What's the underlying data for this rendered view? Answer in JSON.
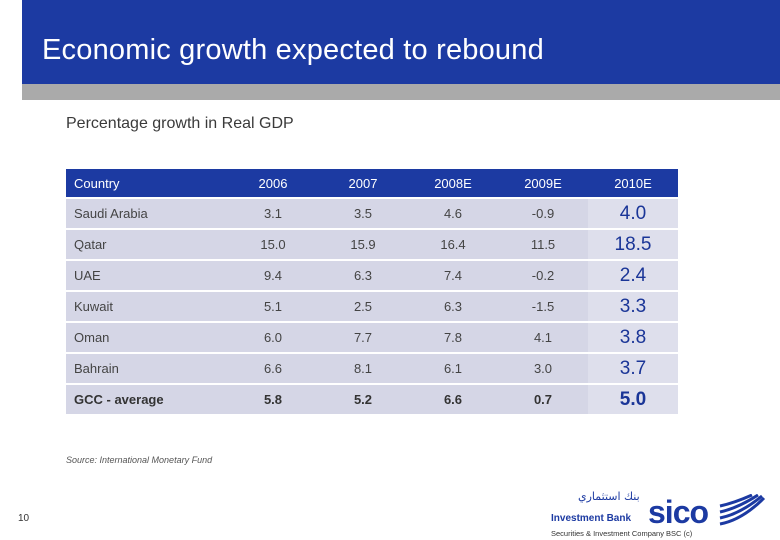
{
  "slide": {
    "title": "Economic growth expected to rebound",
    "subtitle": "Percentage growth in Real GDP",
    "source": "Source: International Monetary Fund",
    "page_number": "10"
  },
  "table": {
    "headers": [
      "Country",
      "2006",
      "2007",
      "2008E",
      "2009E",
      "2010E"
    ],
    "rows": [
      [
        "Saudi Arabia",
        "3.1",
        "3.5",
        "4.6",
        "-0.9",
        "4.0"
      ],
      [
        "Qatar",
        "15.0",
        "15.9",
        "16.4",
        "11.5",
        "18.5"
      ],
      [
        "UAE",
        "9.4",
        "6.3",
        "7.4",
        "-0.2",
        "2.4"
      ],
      [
        "Kuwait",
        "5.1",
        "2.5",
        "6.3",
        "-1.5",
        "3.3"
      ],
      [
        "Oman",
        "6.0",
        "7.7",
        "7.8",
        "4.1",
        "3.8"
      ],
      [
        "Bahrain",
        "6.6",
        "8.1",
        "6.1",
        "3.0",
        "3.7"
      ],
      [
        "GCC - average",
        "5.8",
        "5.2",
        "6.6",
        "0.7",
        "5.0"
      ]
    ]
  },
  "logo": {
    "arabic_name": "بنك استثماري",
    "brand": "sico",
    "tagline": "Investment Bank",
    "company": "Securities & Investment Company BSC (c)"
  },
  "colors": {
    "title_band": "#1c3aa2",
    "grey_bar": "#aaaaaa",
    "row_fill": "#d5d6e6",
    "highlight_text": "#1a3597"
  }
}
